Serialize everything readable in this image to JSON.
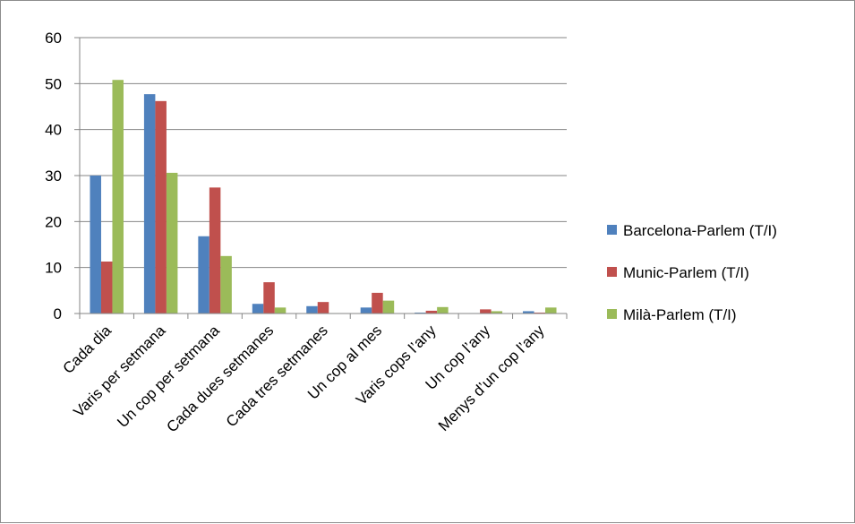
{
  "chart_data": {
    "type": "bar",
    "categories": [
      "Cada dia",
      "Varis per setmana",
      "Un cop  per setmana",
      "Cada dues setmanes",
      "Cada tres setmanes",
      "Un cop al mes",
      "Varis cops l’any",
      "Un cop l’any",
      "Menys d’un cop l’any"
    ],
    "series": [
      {
        "name": "Barcelona-Parlem (T/I)",
        "color": "#4f81bd",
        "values": [
          30,
          47.7,
          16.8,
          2.1,
          1.6,
          1.3,
          0.2,
          0.1,
          0.5
        ]
      },
      {
        "name": "Munic-Parlem (T/I)",
        "color": "#c0504d",
        "values": [
          11.3,
          46.2,
          27.4,
          6.8,
          2.5,
          4.5,
          0.6,
          0.9,
          0.2
        ]
      },
      {
        "name": "Milà-Parlem (T/I)",
        "color": "#9bbb59",
        "values": [
          50.8,
          30.6,
          12.5,
          1.3,
          0.1,
          2.8,
          1.4,
          0.5,
          1.3
        ]
      }
    ],
    "yticks": [
      "0",
      "10",
      "20",
      "30",
      "40",
      "50",
      "60"
    ],
    "ylim": [
      0,
      60
    ],
    "grid": true,
    "legend_position": "right",
    "title": "",
    "xlabel": "",
    "ylabel": ""
  }
}
